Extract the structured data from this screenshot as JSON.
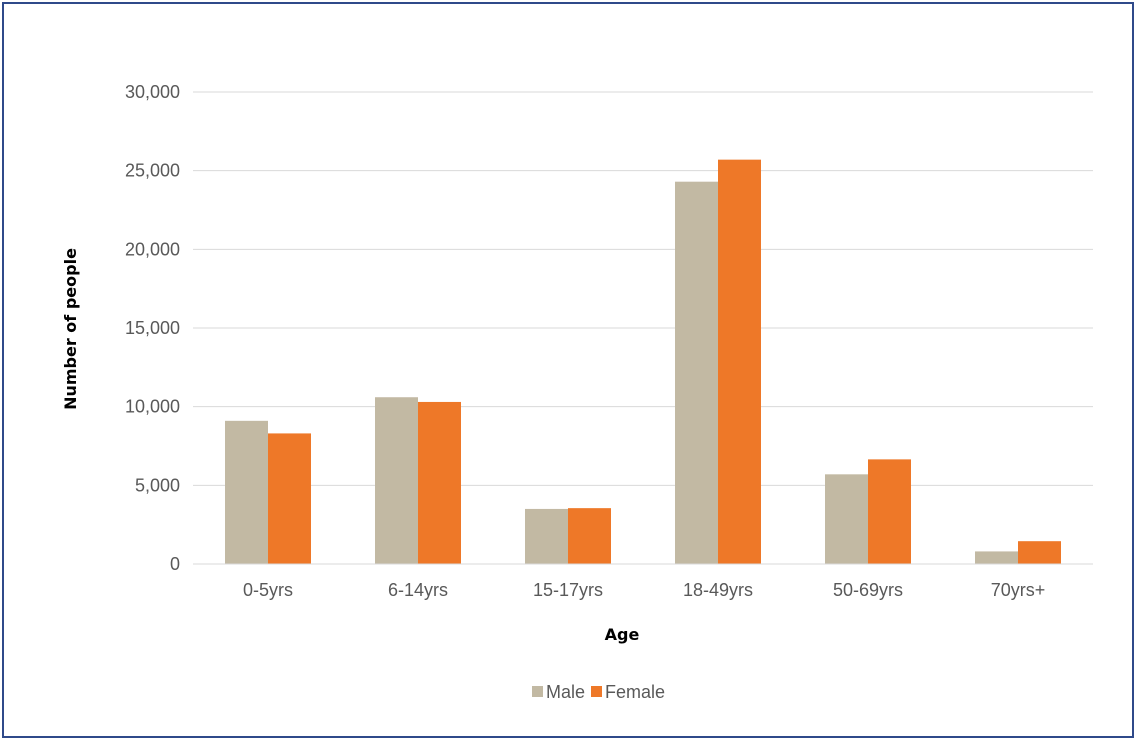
{
  "chart_data": {
    "type": "bar",
    "title": "",
    "xlabel": "Age",
    "ylabel": "Number of people",
    "categories": [
      "0-5yrs",
      "6-14yrs",
      "15-17yrs",
      "18-49yrs",
      "50-69yrs",
      "70yrs+"
    ],
    "series": [
      {
        "name": "Male",
        "color": "#c2b9a3",
        "values": [
          9100,
          10600,
          3500,
          24300,
          5700,
          800
        ]
      },
      {
        "name": "Female",
        "color": "#ee7828",
        "values": [
          8300,
          10300,
          3550,
          25700,
          6650,
          1450
        ]
      }
    ],
    "ylim": [
      0,
      30000
    ],
    "yticks": [
      0,
      5000,
      10000,
      15000,
      20000,
      25000,
      30000
    ],
    "ytick_labels": [
      "0",
      "5,000",
      "10,000",
      "15,000",
      "20,000",
      "25,000",
      "30,000"
    ],
    "grid": true,
    "legend": "bottom-center",
    "gridline_color": "#d9d9d9"
  }
}
